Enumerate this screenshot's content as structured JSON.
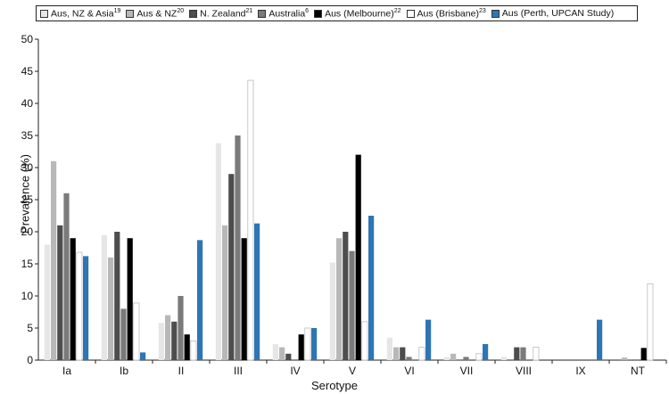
{
  "chart_data": {
    "type": "bar",
    "ylabel": "Prevalence (%)",
    "xlabel": "Serotype",
    "ylim": [
      0,
      50
    ],
    "yticks": [
      "0",
      "5",
      "10",
      "15",
      "20",
      "25",
      "30",
      "35",
      "40",
      "45",
      "50"
    ],
    "grid": false,
    "legend_position": "top",
    "categories": [
      "Ia",
      "Ib",
      "II",
      "III",
      "IV",
      "V",
      "VI",
      "VII",
      "VIII",
      "IX",
      "NT"
    ],
    "series": [
      {
        "name": "Aus, NZ & Asia",
        "ref": "19",
        "color": "#e6e6e6",
        "values": [
          18,
          19.5,
          5.8,
          33.8,
          2.5,
          15.2,
          3.5,
          0.5,
          0.5,
          0,
          0
        ]
      },
      {
        "name": "Aus & NZ",
        "ref": "20",
        "color": "#b8b8b8",
        "values": [
          31,
          16,
          7,
          21,
          2,
          19,
          2,
          1,
          0,
          0,
          0.4
        ]
      },
      {
        "name": "N. Zealand",
        "ref": "21",
        "color": "#4d4d4d",
        "values": [
          21,
          20,
          6,
          29,
          1,
          20,
          2,
          0,
          2,
          0,
          0
        ]
      },
      {
        "name": "Australia",
        "ref": "6",
        "color": "#7a7a7a",
        "values": [
          26,
          8,
          10,
          35,
          0,
          17,
          0.5,
          0.5,
          2,
          0,
          0
        ]
      },
      {
        "name": "Aus (Melbourne)",
        "ref": "22",
        "color": "#000000",
        "values": [
          19,
          19,
          4,
          19,
          4,
          32,
          0,
          0,
          0,
          0,
          1.9
        ]
      },
      {
        "name": "Aus (Brisbane)",
        "ref": "23",
        "color": "#ffffff",
        "values": [
          16.8,
          8.9,
          3,
          43.6,
          5,
          6,
          2,
          1,
          2,
          0,
          11.9
        ]
      },
      {
        "name": "Aus (Perth, UPCAN Study)",
        "ref": "",
        "color": "#2e75b6",
        "values": [
          16.2,
          1.2,
          18.7,
          21.3,
          5,
          22.5,
          6.3,
          2.5,
          0,
          6.3,
          0
        ]
      }
    ]
  }
}
